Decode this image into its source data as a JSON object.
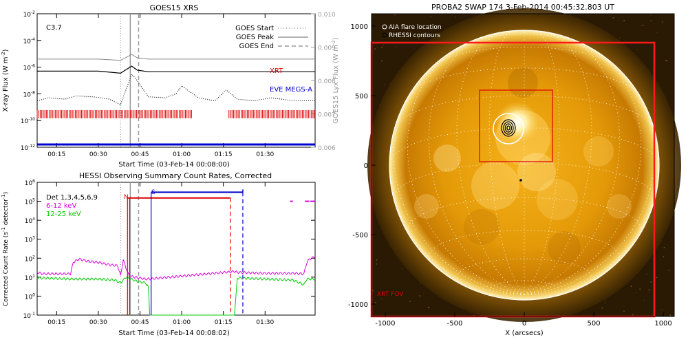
{
  "colors": {
    "xrt": "#e00000",
    "eve": "#0000cc",
    "blue": "#0000cc",
    "lowband": "#dd00dd",
    "highband": "#00cc00",
    "gray": "#999999",
    "red": "#e00000"
  },
  "goes_panel": {
    "title": "GOES15 XRS",
    "class_label": "C3.7",
    "ylabel": "X-ray Flux (W m^-2)",
    "ylabel_right": "GOES15 Lyx Flux (W m^-2)",
    "xlabel": "Start Time (03-Feb-14 00:08:00)",
    "xticks": [
      "00:15",
      "00:30",
      "00:45",
      "01:00",
      "01:15",
      "01:30"
    ],
    "yticks_left": [
      "10^-2",
      "10^-4",
      "10^-6",
      "10^-8",
      "10^-10",
      "10^-12"
    ],
    "yticks_right": [
      "0.010",
      "0.009",
      "0.008",
      "0.007",
      "0.006"
    ],
    "legend": {
      "start": "GOES Start",
      "peak": "GOES Peak",
      "end": "GOES End"
    },
    "xrt_label": "XRT",
    "eve_label": "EVE MEGS-A"
  },
  "hessi_panel": {
    "title": "HESSI Observing Summary Count Rates, Corrected",
    "ylabel": "Corrected Count Rate (s^-1 detector^-1)",
    "xlabel": "Start Time (03-Feb-14 00:08:02)",
    "xticks": [
      "00:15",
      "00:30",
      "00:45",
      "01:00",
      "01:15",
      "01:30"
    ],
    "yticks": [
      "10^6",
      "10^5",
      "10^4",
      "10^3",
      "10^2",
      "10^1",
      "10^0",
      "10^-1"
    ],
    "legend": {
      "det": "Det 1,3,4,5,6,9",
      "low": "6-12 keV",
      "high": "12-25 keV"
    },
    "marker_n": "N",
    "marker_s": "S"
  },
  "swap_panel": {
    "title": "PROBA2 SWAP 174   3-Feb-2014 00:45:32.803 UT",
    "legend": {
      "aia": "AIA flare location",
      "rhessi": "RHESSI contours"
    },
    "xlabel": "X (arcsecs)",
    "xticks": [
      "-1000",
      "-500",
      "0",
      "500",
      "1000"
    ],
    "yticks": [
      "1000",
      "500",
      "0",
      "-500",
      "-1000"
    ],
    "fov_label": "XRT FOV"
  },
  "chart_data": [
    {
      "type": "line",
      "title": "GOES15 XRS",
      "xlabel": "Start Time (03-Feb-14 00:08:00)",
      "ylabel": "X-ray Flux (W m^-2)",
      "y_scale": "log",
      "ylim": [
        1e-12,
        0.01
      ],
      "xlim_minutes": [
        8,
        108
      ],
      "series": [
        {
          "name": "GOES",
          "x_min": [
            8,
            20,
            30,
            38,
            42,
            44,
            48,
            60,
            75,
            90,
            108
          ],
          "values": [
            4e-06,
            4e-06,
            4e-06,
            3.2e-06,
            9e-06,
            5e-06,
            4e-06,
            4e-06,
            4e-06,
            4e-06,
            4e-06
          ]
        },
        {
          "name": "GOES",
          "x_min": [
            8,
            20,
            30,
            38,
            42,
            44,
            48,
            60,
            75,
            90,
            108
          ],
          "values": [
            5e-07,
            5e-07,
            5e-07,
            3.5e-07,
            1.2e-06,
            6e-07,
            4.5e-07,
            4.5e-07,
            4.5e-07,
            4.5e-07,
            4.5e-07
          ]
        },
        {
          "name": "EVE MEGS-A",
          "x_min": [
            8,
            12,
            18,
            22,
            28,
            34,
            38,
            42,
            44,
            48,
            54,
            58,
            60,
            66,
            72,
            76,
            80,
            86,
            92,
            96,
            100,
            108
          ],
          "values": [
            3e-09,
            5e-09,
            4e-09,
            7e-09,
            6e-09,
            4e-09,
            1.5e-09,
            3e-07,
            1e-07,
            6e-09,
            5e-09,
            1e-08,
            4e-08,
            5e-09,
            3e-09,
            2e-08,
            4e-09,
            3e-09,
            5e-09,
            4e-09,
            3e-09,
            3e-09
          ]
        }
      ],
      "goes_start_min": 38,
      "goes_peak_min": 41.5,
      "goes_end_min": 44.5,
      "xrt_coverage_min": [
        [
          8,
          64
        ],
        [
          77,
          108
        ]
      ]
    },
    {
      "type": "line",
      "title": "HESSI Observing Summary Count Rates, Corrected",
      "xlabel": "Start Time (03-Feb-14 00:08:02)",
      "ylabel": "Corrected Count Rate (s^-1 detector^-1)",
      "y_scale": "log",
      "ylim": [
        0.1,
        1000000.0
      ],
      "xlim_minutes": [
        8,
        108
      ],
      "series": [
        {
          "name": "6-12 keV",
          "x_min": [
            8,
            10,
            20,
            21,
            23,
            26,
            30,
            34,
            37,
            38,
            39,
            40,
            41,
            43,
            45,
            47,
            48,
            79,
            80,
            90,
            100,
            104,
            105,
            106,
            108
          ],
          "values": [
            18,
            15,
            15,
            60,
            90,
            70,
            60,
            45,
            40,
            12,
            80,
            30,
            12,
            10,
            9,
            8,
            8,
            20,
            18,
            16,
            16,
            15,
            60,
            90,
            120
          ]
        },
        {
          "name": "12-25 keV",
          "x_min": [
            8,
            10,
            20,
            30,
            36,
            38,
            40,
            44,
            47,
            48,
            48.5,
            79,
            80,
            90,
            100,
            104,
            105,
            108
          ],
          "values": [
            9,
            9,
            8,
            8,
            7,
            5,
            10,
            6,
            5,
            3,
            0.1,
            0.1,
            9,
            8,
            7,
            4,
            8,
            8
          ]
        }
      ],
      "saa_interval_min": [
        49,
        82
      ],
      "night_interval_min": [
        40.5,
        77.5
      ],
      "saa_level": 300000.0,
      "night_level": 150000.0,
      "gap_segments": [
        [
          104,
          106
        ],
        [
          106,
          108
        ]
      ],
      "gap_level": 100000.0
    }
  ]
}
